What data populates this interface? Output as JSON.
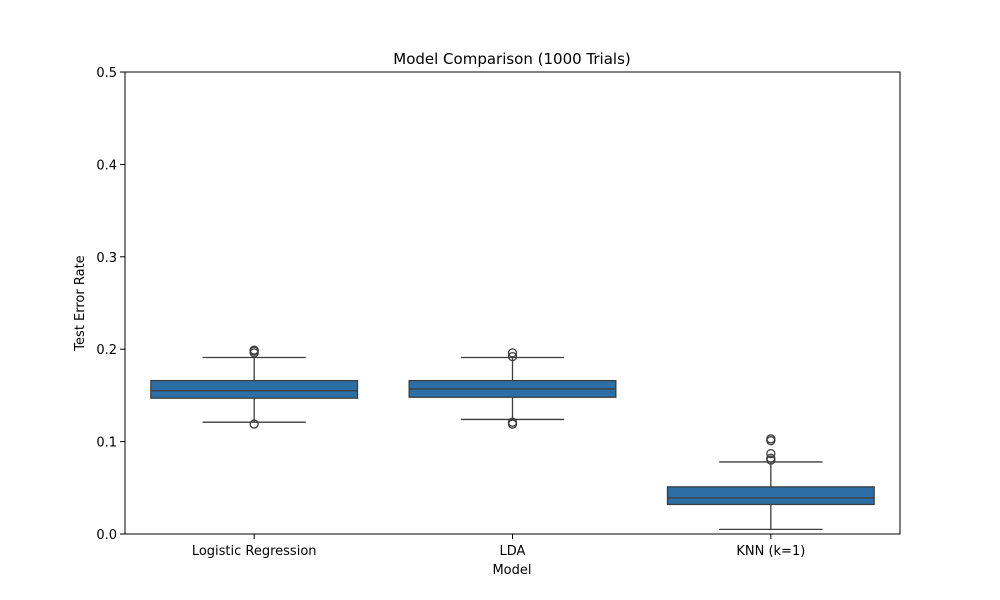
{
  "chart_data": {
    "type": "box",
    "title": "Model Comparison (1000 Trials)",
    "xlabel": "Model",
    "ylabel": "Test Error Rate",
    "ylim": [
      0,
      0.5
    ],
    "yticks": [
      0.0,
      0.1,
      0.2,
      0.3,
      0.4,
      0.5
    ],
    "ytick_labels": [
      "0.0",
      "0.1",
      "0.2",
      "0.3",
      "0.4",
      "0.5"
    ],
    "grid": false,
    "box_color": "#2c6fa6",
    "edge_color": "#3d3d3d",
    "categories": [
      "Logistic Regression",
      "LDA",
      "KNN (k=1)"
    ],
    "boxes": [
      {
        "category": "Logistic Regression",
        "whisker_low": 0.121,
        "q1": 0.147,
        "median": 0.155,
        "q3": 0.166,
        "whisker_high": 0.191,
        "outliers": [
          0.119,
          0.196,
          0.198,
          0.199
        ]
      },
      {
        "category": "LDA",
        "whisker_low": 0.124,
        "q1": 0.148,
        "median": 0.157,
        "q3": 0.166,
        "whisker_high": 0.191,
        "outliers": [
          0.119,
          0.121,
          0.192,
          0.196
        ]
      },
      {
        "category": "KNN (k=1)",
        "whisker_low": 0.005,
        "q1": 0.032,
        "median": 0.039,
        "q3": 0.051,
        "whisker_high": 0.078,
        "outliers": [
          0.08,
          0.082,
          0.087,
          0.101,
          0.103
        ]
      }
    ]
  }
}
